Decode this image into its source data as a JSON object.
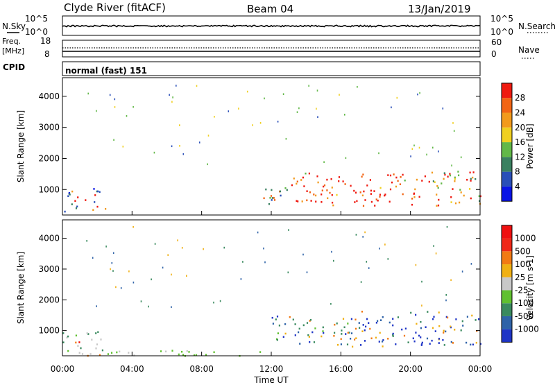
{
  "header": {
    "station": "Clyde River (fitACF)",
    "beam": "Beam 04",
    "date": "13/Jan/2019"
  },
  "strip_nsky": {
    "left_label": "N.Sky",
    "right_label": "N.Search",
    "ticks_left": [
      "10^5",
      "10^0"
    ],
    "ticks_right": [
      "10^5",
      "10^0"
    ]
  },
  "strip_freq": {
    "left_label_1": "Freq.",
    "left_label_2": "[MHz]",
    "right_label": "Nave",
    "ticks_left": [
      "18",
      "8"
    ],
    "ticks_right": [
      "60",
      "0"
    ]
  },
  "cpid": {
    "label": "CPID",
    "value": "normal (fast) 151"
  },
  "x_axis": {
    "label": "Time UT",
    "ticks": [
      "00:00",
      "04:00",
      "08:00",
      "12:00",
      "16:00",
      "20:00",
      "00:00"
    ]
  },
  "chart_data": [
    {
      "type": "heatmap",
      "ylabel": "Slant Range [km]",
      "yticks": [
        "1000",
        "2000",
        "3000",
        "4000"
      ],
      "ylim": [
        180,
        4600
      ],
      "xlim_hours": [
        0,
        24
      ],
      "colorbar": {
        "label": "Power [dB]",
        "ticks": [
          "4",
          "8",
          "12",
          "16",
          "20",
          "24",
          "28"
        ],
        "colors": [
          "#0a14e6",
          "#2a4fb8",
          "#3a8060",
          "#62b848",
          "#f0d020",
          "#f29a1c",
          "#f26514",
          "#ef1a10"
        ]
      },
      "regions": [
        {
          "t": [
            0.0,
            2.5
          ],
          "r": [
            300,
            1050
          ],
          "level": "mixed-high"
        },
        {
          "t": [
            11.5,
            13.0
          ],
          "r": [
            500,
            1400
          ],
          "level": "mixed"
        },
        {
          "t": [
            13.0,
            20.5
          ],
          "r": [
            500,
            1550
          ],
          "level": "high"
        },
        {
          "t": [
            20.5,
            24.0
          ],
          "r": [
            500,
            1650
          ],
          "level": "mid-high"
        }
      ]
    },
    {
      "type": "heatmap",
      "ylabel": "Slant Range [km]",
      "yticks": [
        "1000",
        "2000",
        "3000",
        "4000"
      ],
      "ylim": [
        180,
        4600
      ],
      "xlim_hours": [
        0,
        24
      ],
      "colorbar": {
        "label": "Velocity [m s-1]",
        "ticks": [
          "1000",
          "500",
          "100",
          "25",
          "-25",
          "-100",
          "-500",
          "-1000"
        ],
        "colors": [
          "#1f35c6",
          "#2f63a8",
          "#3a8a5f",
          "#60c030",
          "#c8c8c8",
          "#f0b014",
          "#f27a14",
          "#ef2818",
          "#ef1010"
        ]
      },
      "regions": [
        {
          "t": [
            0.0,
            2.5
          ],
          "r": [
            200,
            1050
          ],
          "level": "mixed"
        },
        {
          "t": [
            2.5,
            12.0
          ],
          "r": [
            200,
            400
          ],
          "level": "ground-scatter"
        },
        {
          "t": [
            12.0,
            17.0
          ],
          "r": [
            500,
            1500
          ],
          "level": "mixed-positive"
        },
        {
          "t": [
            17.0,
            24.0
          ],
          "r": [
            500,
            1650
          ],
          "level": "mostly-positive"
        }
      ]
    }
  ]
}
